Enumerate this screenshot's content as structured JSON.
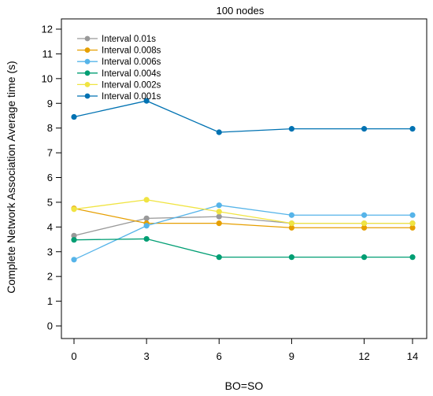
{
  "chart_data": {
    "type": "line",
    "title": "100 nodes",
    "xlabel": "BO=SO",
    "ylabel": "Complete Network Association Average time (s)",
    "categories": [
      "0",
      "3",
      "6",
      "9",
      "12",
      "14"
    ],
    "x": [
      0,
      3,
      6,
      9,
      12,
      14
    ],
    "xlim": [
      0,
      14
    ],
    "ylim": [
      0,
      12
    ],
    "yticks": [
      "0",
      "1",
      "2",
      "3",
      "4",
      "5",
      "6",
      "7",
      "8",
      "9",
      "10",
      "11",
      "12"
    ],
    "grid": false,
    "legend_position": "top-left",
    "series": [
      {
        "name": "Interval 0.01s",
        "color": "#999999",
        "values": [
          3.65,
          4.35,
          4.42,
          4.15,
          4.15,
          4.15
        ]
      },
      {
        "name": "Interval 0.008s",
        "color": "#E69F00",
        "values": [
          4.75,
          4.15,
          4.15,
          3.97,
          3.97,
          3.97
        ]
      },
      {
        "name": "Interval 0.006s",
        "color": "#56B4E9",
        "values": [
          2.68,
          4.05,
          4.88,
          4.48,
          4.48,
          4.48
        ]
      },
      {
        "name": "Interval 0.004s",
        "color": "#009E73",
        "values": [
          3.48,
          3.52,
          2.78,
          2.78,
          2.78,
          2.78
        ]
      },
      {
        "name": "Interval 0.002s",
        "color": "#F0E442",
        "values": [
          4.72,
          5.1,
          4.62,
          4.15,
          4.15,
          4.15
        ]
      },
      {
        "name": "Interval 0.001s",
        "color": "#0072B2",
        "values": [
          8.45,
          9.1,
          7.83,
          7.97,
          7.97,
          7.97
        ]
      }
    ]
  }
}
